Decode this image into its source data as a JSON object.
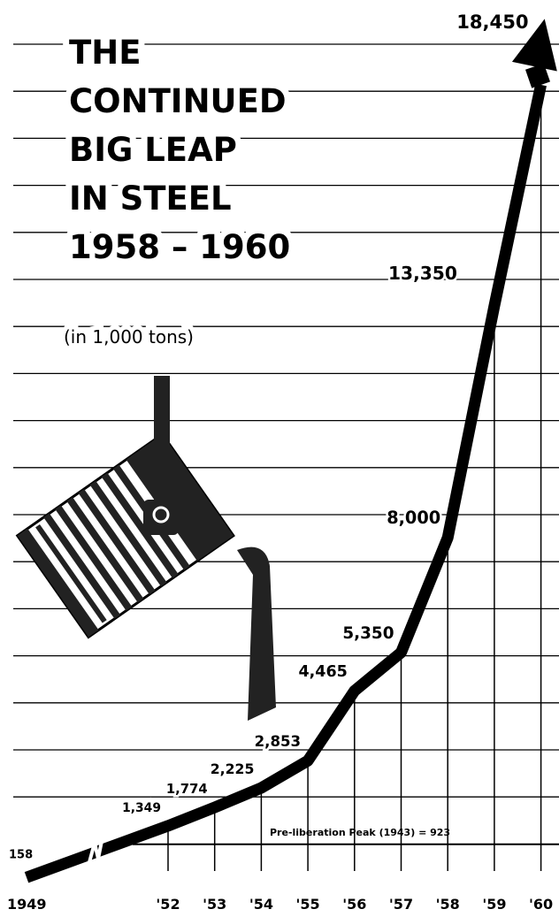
{
  "chart_data": {
    "type": "line",
    "title": [
      "THE",
      "CONTINUED",
      "BIG LEAP",
      "IN STEEL",
      "1958 – 1960"
    ],
    "subtitle": "(in 1,000 tons)",
    "categories": [
      "1949",
      "'52",
      "'53",
      "'54",
      "'55",
      "'56",
      "'57",
      "'58",
      "'59",
      "'60"
    ],
    "values": [
      158,
      1349,
      1774,
      2225,
      2853,
      4465,
      5350,
      8000,
      13350,
      18450
    ],
    "value_labels": [
      "158",
      "1,349",
      "1,774",
      "2,225",
      "2,853",
      "4,465",
      "5,350",
      "8,000",
      "13,350",
      "18,450"
    ],
    "reference_line": {
      "value": 923,
      "label": "Pre-liberation Peak (1943) = 923"
    },
    "color": "#000000",
    "ylim": [
      0,
      20000
    ]
  }
}
